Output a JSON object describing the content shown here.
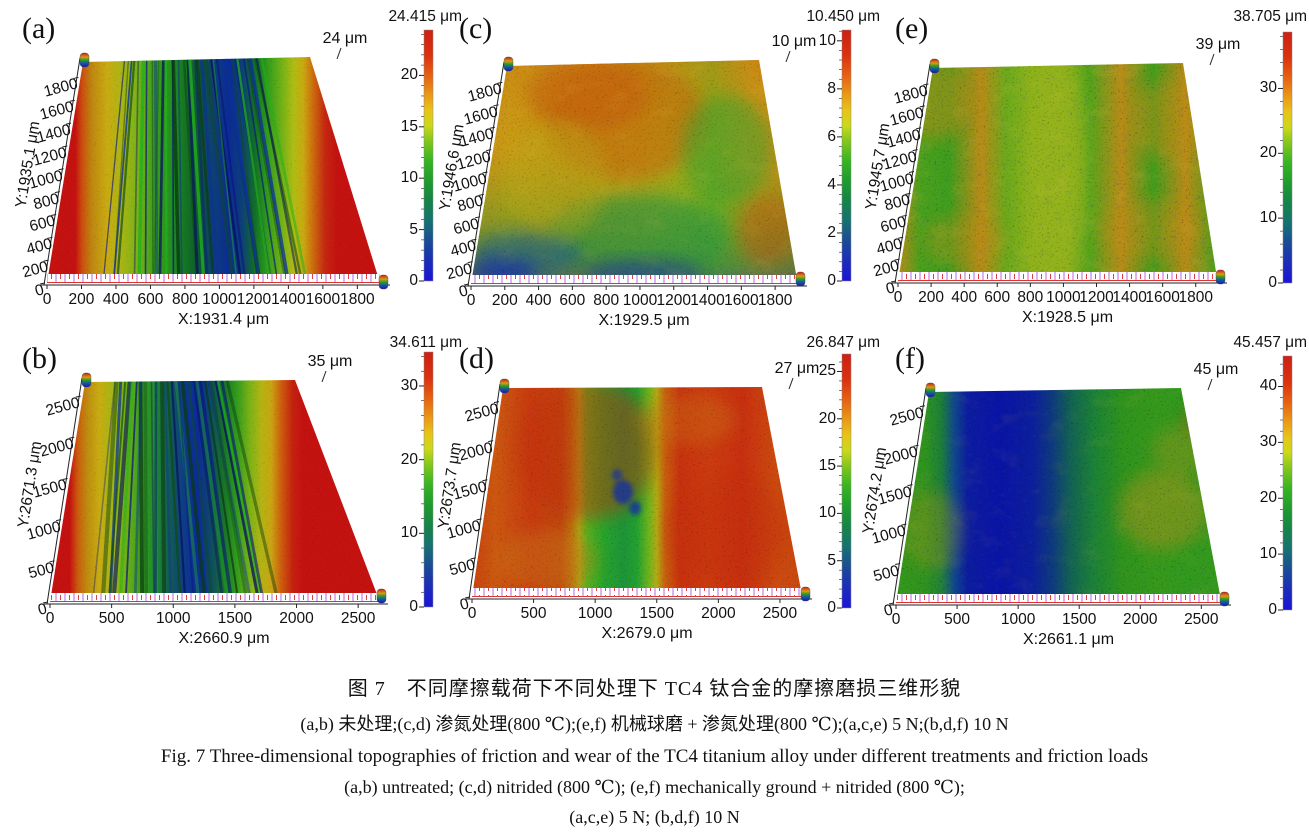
{
  "figure": {
    "zh_title": "图 7　不同摩擦载荷下不同处理下 TC4 钛合金的摩擦磨损三维形貌",
    "zh_sub": "(a,b) 未处理;(c,d) 渗氮处理(800 ℃);(e,f) 机械球磨 + 渗氮处理(800 ℃);(a,c,e) 5 N;(b,d,f) 10 N",
    "en_title": "Fig. 7   Three-dimensional topographies of friction and wear of the TC4 titanium alloy under different treatments and friction loads",
    "en_sub1": "(a,b) untreated; (c,d) nitrided (800 ℃); (e,f) mechanically ground + nitrided (800 ℃);",
    "en_sub2": "(a,c,e) 5 N; (b,d,f) 10 N"
  },
  "colorbar_unit": "μm",
  "panels": [
    {
      "id": "a",
      "label": "(a)",
      "colorbar_max_label": "24.415 μm",
      "colorbar_max_value": 24.415,
      "peak_label": "24 μm",
      "colorbar_ticks": [
        0,
        5,
        10,
        15,
        20
      ],
      "x_axis_label": "X:1931.4 μm",
      "y_axis_label": "Y:1935.1 μm",
      "x_ticks": [
        "0",
        "200",
        "400",
        "600",
        "800",
        "1000",
        "1200",
        "1400",
        "1600",
        "1800"
      ],
      "y_ticks": [
        "0",
        "200",
        "400",
        "600",
        "800",
        "1000",
        "1200",
        "1400",
        "1600",
        "1800"
      ]
    },
    {
      "id": "c",
      "label": "(c)",
      "colorbar_max_label": "10.450 μm",
      "colorbar_max_value": 10.45,
      "peak_label": "10 μm",
      "colorbar_ticks": [
        0,
        2,
        4,
        6,
        8,
        10
      ],
      "x_axis_label": "X:1929.5 μm",
      "y_axis_label": "Y:1946.6 μm",
      "x_ticks": [
        "0",
        "200",
        "400",
        "600",
        "800",
        "1000",
        "1200",
        "1400",
        "1600",
        "1800"
      ],
      "y_ticks": [
        "0",
        "200",
        "400",
        "600",
        "800",
        "1000",
        "1200",
        "1400",
        "1600",
        "1800"
      ]
    },
    {
      "id": "e",
      "label": "(e)",
      "colorbar_max_label": "38.705 μm",
      "colorbar_max_value": 38.705,
      "peak_label": "39 μm",
      "colorbar_ticks": [
        0,
        10,
        20,
        30
      ],
      "x_axis_label": "X:1928.5 μm",
      "y_axis_label": "Y:1945.7 μm",
      "x_ticks": [
        "0",
        "200",
        "400",
        "600",
        "800",
        "1000",
        "1200",
        "1400",
        "1600",
        "1800"
      ],
      "y_ticks": [
        "0",
        "200",
        "400",
        "600",
        "800",
        "1000",
        "1200",
        "1400",
        "1600",
        "1800"
      ]
    },
    {
      "id": "b",
      "label": "(b)",
      "colorbar_max_label": "34.611 μm",
      "colorbar_max_value": 34.611,
      "peak_label": "35 μm",
      "colorbar_ticks": [
        0,
        10,
        20,
        30
      ],
      "x_axis_label": "X:2660.9 μm",
      "y_axis_label": "Y:2671.3 μm",
      "x_ticks": [
        "0",
        "500",
        "1000",
        "1500",
        "2000",
        "2500"
      ],
      "y_ticks": [
        "0",
        "500",
        "1000",
        "1500",
        "2000",
        "2500"
      ]
    },
    {
      "id": "d",
      "label": "(d)",
      "colorbar_max_label": "26.847 μm",
      "colorbar_max_value": 26.847,
      "peak_label": "27 μm",
      "colorbar_ticks": [
        0,
        5,
        10,
        15,
        20,
        25
      ],
      "x_axis_label": "X:2679.0 μm",
      "y_axis_label": "Y:2673.7 μm",
      "x_ticks": [
        "0",
        "500",
        "1000",
        "1500",
        "2000",
        "2500"
      ],
      "y_ticks": [
        "0",
        "500",
        "1000",
        "1500",
        "2000",
        "2500"
      ]
    },
    {
      "id": "f",
      "label": "(f)",
      "colorbar_max_label": "45.457 μm",
      "colorbar_max_value": 45.457,
      "peak_label": "45 μm",
      "colorbar_ticks": [
        0,
        10,
        20,
        30,
        40
      ],
      "x_axis_label": "X:2661.1 μm",
      "y_axis_label": "Y:2674.2 μm",
      "x_ticks": [
        "0",
        "500",
        "1000",
        "1500",
        "2000",
        "2500"
      ],
      "y_ticks": [
        "0",
        "500",
        "1000",
        "1500",
        "2000",
        "2500"
      ]
    }
  ],
  "chart_data": [
    {
      "type": "heatmap",
      "panel": "a",
      "z_unit": "μm",
      "z_max": 24.415,
      "x_max_um": 1931.4,
      "y_max_um": 1935.1,
      "z_ticks": [
        0,
        5,
        10,
        15,
        20
      ]
    },
    {
      "type": "heatmap",
      "panel": "c",
      "z_unit": "μm",
      "z_max": 10.45,
      "x_max_um": 1929.5,
      "y_max_um": 1946.6,
      "z_ticks": [
        0,
        2,
        4,
        6,
        8,
        10
      ]
    },
    {
      "type": "heatmap",
      "panel": "e",
      "z_unit": "μm",
      "z_max": 38.705,
      "x_max_um": 1928.5,
      "y_max_um": 1945.7,
      "z_ticks": [
        0,
        10,
        20,
        30
      ]
    },
    {
      "type": "heatmap",
      "panel": "b",
      "z_unit": "μm",
      "z_max": 34.611,
      "x_max_um": 2660.9,
      "y_max_um": 2671.3,
      "z_ticks": [
        0,
        10,
        20,
        30
      ]
    },
    {
      "type": "heatmap",
      "panel": "d",
      "z_unit": "μm",
      "z_max": 26.847,
      "x_max_um": 2679.0,
      "y_max_um": 2673.7,
      "z_ticks": [
        0,
        5,
        10,
        15,
        20,
        25
      ]
    },
    {
      "type": "heatmap",
      "panel": "f",
      "z_unit": "μm",
      "z_max": 45.457,
      "x_max_um": 2661.1,
      "y_max_um": 2674.2,
      "z_ticks": [
        0,
        10,
        20,
        30,
        40
      ]
    }
  ]
}
